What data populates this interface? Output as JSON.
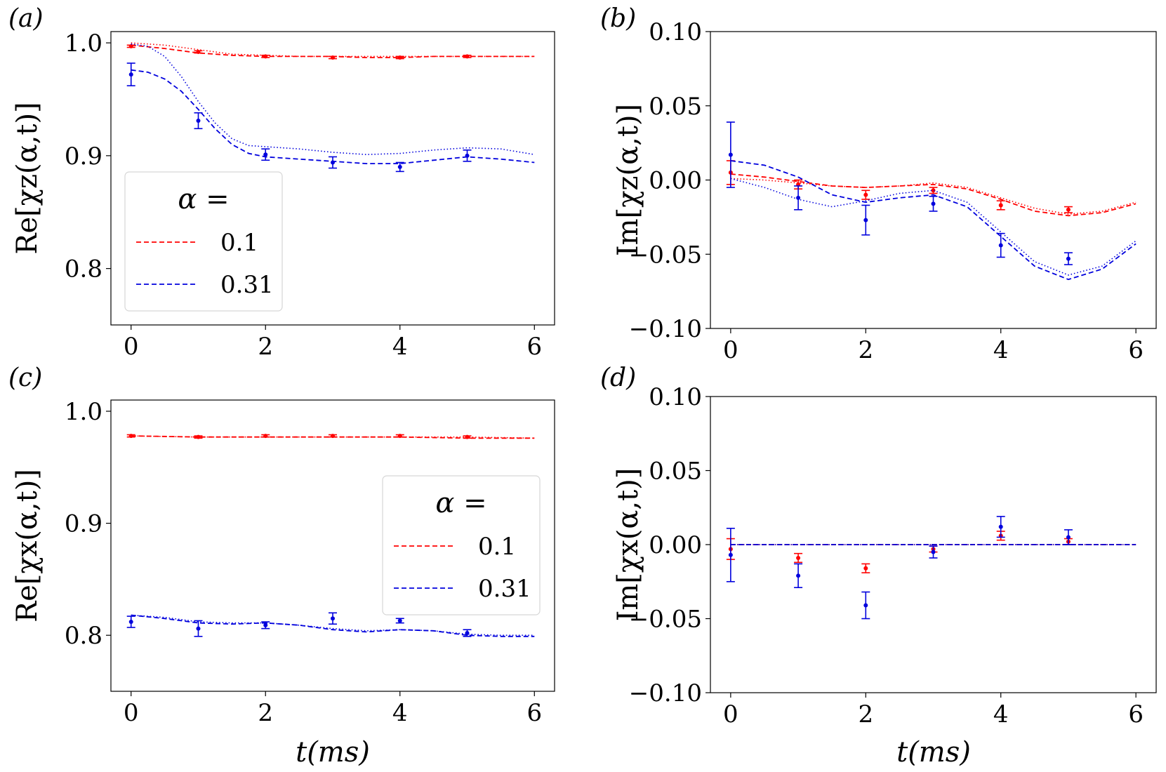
{
  "figure": {
    "xlabel": "t(ms)",
    "legend_title": "α ="
  },
  "colors": {
    "red": "#ff0000",
    "blue": "#0000dd"
  },
  "chart_data": [
    {
      "panel": "(a)",
      "type": "line",
      "ylabel": "Re[χz(α,t)]",
      "xlim": [
        -0.3,
        6.3
      ],
      "ylim": [
        0.75,
        1.01
      ],
      "xticks": [
        0,
        2,
        4,
        6
      ],
      "xtick_labels": [
        "0",
        "2",
        "4",
        "6"
      ],
      "yticks": [
        0.8,
        0.9,
        1.0
      ],
      "ytick_labels": [
        "0.8",
        "0.9",
        "1.0"
      ],
      "legend": {
        "title": "α =",
        "entries": [
          "0.1",
          "0.31"
        ],
        "position": "lower-left"
      },
      "series": [
        {
          "name": "0.1",
          "color": "red",
          "points": {
            "x": [
              0,
              1,
              2,
              3,
              4,
              5
            ],
            "y": [
              0.997,
              0.992,
              0.988,
              0.987,
              0.987,
              0.988
            ],
            "err": [
              0.001,
              0.001,
              0.001,
              0.001,
              0.001,
              0.001
            ]
          },
          "dashed": {
            "x": [
              0,
              0.5,
              1,
              1.5,
              2,
              2.5,
              3,
              3.5,
              4,
              4.5,
              5,
              5.5,
              6
            ],
            "y": [
              0.998,
              0.995,
              0.991,
              0.989,
              0.988,
              0.988,
              0.988,
              0.987,
              0.987,
              0.988,
              0.988,
              0.988,
              0.988
            ]
          },
          "dotted": {
            "x": [
              0,
              0.5,
              1,
              1.5,
              2,
              2.5,
              3,
              3.5,
              4,
              4.5,
              5,
              5.5,
              6
            ],
            "y": [
              1.0,
              0.998,
              0.994,
              0.99,
              0.989,
              0.988,
              0.988,
              0.988,
              0.988,
              0.988,
              0.988,
              0.988,
              0.988
            ]
          }
        },
        {
          "name": "0.31",
          "color": "blue",
          "points": {
            "x": [
              0,
              1,
              2,
              3,
              4,
              5
            ],
            "y": [
              0.972,
              0.931,
              0.901,
              0.894,
              0.89,
              0.9
            ],
            "err": [
              0.01,
              0.007,
              0.005,
              0.005,
              0.004,
              0.005
            ]
          },
          "dashed": {
            "x": [
              0,
              0.25,
              0.5,
              0.75,
              1,
              1.25,
              1.5,
              1.75,
              2,
              2.5,
              3,
              3.5,
              4,
              4.5,
              5,
              5.5,
              6
            ],
            "y": [
              0.976,
              0.974,
              0.968,
              0.957,
              0.941,
              0.924,
              0.91,
              0.902,
              0.899,
              0.897,
              0.895,
              0.893,
              0.893,
              0.896,
              0.899,
              0.897,
              0.894
            ]
          },
          "dotted": {
            "x": [
              0,
              0.25,
              0.5,
              0.75,
              1,
              1.25,
              1.5,
              1.75,
              2,
              2.5,
              3,
              3.5,
              4,
              4.5,
              5,
              5.5,
              6
            ],
            "y": [
              0.999,
              0.997,
              0.988,
              0.97,
              0.948,
              0.929,
              0.915,
              0.909,
              0.908,
              0.906,
              0.903,
              0.901,
              0.902,
              0.905,
              0.907,
              0.906,
              0.901
            ]
          }
        }
      ]
    },
    {
      "panel": "(b)",
      "type": "line",
      "ylabel": "Im[χz(α,t)]",
      "xlim": [
        -0.3,
        6.3
      ],
      "ylim": [
        -0.1,
        0.1
      ],
      "xticks": [
        0,
        2,
        4,
        6
      ],
      "xtick_labels": [
        "0",
        "2",
        "4",
        "6"
      ],
      "yticks": [
        -0.1,
        -0.05,
        0.0,
        0.05,
        0.1
      ],
      "ytick_labels": [
        "−0.10",
        "−0.05",
        "0.00",
        "0.05",
        "0.10"
      ],
      "series": [
        {
          "name": "0.1",
          "color": "red",
          "points": {
            "x": [
              0,
              1,
              2,
              3,
              4,
              5
            ],
            "y": [
              0.005,
              -0.003,
              -0.01,
              -0.007,
              -0.017,
              -0.02
            ],
            "err": [
              0.008,
              0.003,
              0.003,
              0.002,
              0.003,
              0.002
            ]
          },
          "dashed": {
            "x": [
              0,
              0.5,
              1,
              1.5,
              2,
              2.5,
              3,
              3.5,
              4,
              4.5,
              5,
              5.5,
              6
            ],
            "y": [
              0.004,
              0.002,
              -0.001,
              -0.004,
              -0.005,
              -0.004,
              -0.003,
              -0.006,
              -0.013,
              -0.021,
              -0.024,
              -0.022,
              -0.016
            ]
          },
          "dotted": {
            "x": [
              0,
              0.5,
              1,
              1.5,
              2,
              2.5,
              3,
              3.5,
              4,
              4.5,
              5,
              5.5,
              6
            ],
            "y": [
              0.001,
              0.0,
              -0.002,
              -0.004,
              -0.005,
              -0.004,
              -0.002,
              -0.005,
              -0.012,
              -0.019,
              -0.023,
              -0.021,
              -0.015
            ]
          }
        },
        {
          "name": "0.31",
          "color": "blue",
          "points": {
            "x": [
              0,
              1,
              2,
              3,
              4,
              5
            ],
            "y": [
              0.017,
              -0.012,
              -0.027,
              -0.016,
              -0.044,
              -0.053
            ],
            "err": [
              0.022,
              0.008,
              0.01,
              0.005,
              0.008,
              0.004
            ]
          },
          "dashed": {
            "x": [
              0,
              0.5,
              1,
              1.5,
              2,
              2.5,
              3,
              3.5,
              4,
              4.5,
              5,
              5.5,
              6
            ],
            "y": [
              0.013,
              0.01,
              0.002,
              -0.01,
              -0.015,
              -0.012,
              -0.01,
              -0.018,
              -0.038,
              -0.058,
              -0.067,
              -0.06,
              -0.043
            ]
          },
          "dotted": {
            "x": [
              0,
              0.5,
              1,
              1.5,
              2,
              2.5,
              3,
              3.5,
              4,
              4.5,
              5,
              5.5,
              6
            ],
            "y": [
              0.001,
              -0.005,
              -0.013,
              -0.018,
              -0.014,
              -0.009,
              -0.007,
              -0.015,
              -0.035,
              -0.055,
              -0.064,
              -0.058,
              -0.041
            ]
          }
        }
      ]
    },
    {
      "panel": "(c)",
      "type": "line",
      "ylabel": "Re[χx(α,t)]",
      "xlim": [
        -0.3,
        6.3
      ],
      "ylim": [
        0.75,
        1.01
      ],
      "xticks": [
        0,
        2,
        4,
        6
      ],
      "xtick_labels": [
        "0",
        "2",
        "4",
        "6"
      ],
      "yticks": [
        0.8,
        0.9,
        1.0
      ],
      "ytick_labels": [
        "0.8",
        "0.9",
        "1.0"
      ],
      "legend": {
        "title": "α =",
        "entries": [
          "0.1",
          "0.31"
        ],
        "position": "center-right"
      },
      "series": [
        {
          "name": "0.1",
          "color": "red",
          "points": {
            "x": [
              0,
              1,
              2,
              3,
              4,
              5
            ],
            "y": [
              0.978,
              0.977,
              0.978,
              0.978,
              0.978,
              0.977
            ],
            "err": [
              0.001,
              0.001,
              0.001,
              0.001,
              0.001,
              0.001
            ]
          },
          "dashed": {
            "x": [
              0,
              1,
              2,
              3,
              4,
              5,
              6
            ],
            "y": [
              0.978,
              0.977,
              0.977,
              0.977,
              0.977,
              0.976,
              0.976
            ]
          },
          "dotted": {
            "x": [
              0,
              1,
              2,
              3,
              4,
              5,
              6
            ],
            "y": [
              0.978,
              0.977,
              0.977,
              0.977,
              0.977,
              0.977,
              0.976
            ]
          }
        },
        {
          "name": "0.31",
          "color": "blue",
          "points": {
            "x": [
              0,
              1,
              2,
              3,
              4,
              5
            ],
            "y": [
              0.812,
              0.806,
              0.809,
              0.815,
              0.813,
              0.802
            ],
            "err": [
              0.005,
              0.007,
              0.003,
              0.005,
              0.002,
              0.003
            ]
          },
          "dashed": {
            "x": [
              0,
              0.5,
              1,
              1.5,
              2,
              2.5,
              3,
              3.5,
              4,
              4.5,
              5,
              5.5,
              6
            ],
            "y": [
              0.818,
              0.815,
              0.811,
              0.81,
              0.811,
              0.809,
              0.805,
              0.803,
              0.805,
              0.804,
              0.8,
              0.799,
              0.799
            ]
          },
          "dotted": {
            "x": [
              0,
              0.5,
              1,
              1.5,
              2,
              2.5,
              3,
              3.5,
              4,
              4.5,
              5,
              5.5,
              6
            ],
            "y": [
              0.818,
              0.816,
              0.812,
              0.811,
              0.811,
              0.809,
              0.806,
              0.804,
              0.805,
              0.804,
              0.801,
              0.8,
              0.8
            ]
          }
        }
      ]
    },
    {
      "panel": "(d)",
      "type": "line",
      "ylabel": "Im[χx(α,t)]",
      "xlim": [
        -0.3,
        6.3
      ],
      "ylim": [
        -0.1,
        0.1
      ],
      "xticks": [
        0,
        2,
        4,
        6
      ],
      "xtick_labels": [
        "0",
        "2",
        "4",
        "6"
      ],
      "yticks": [
        -0.1,
        -0.05,
        0.0,
        0.05,
        0.1
      ],
      "ytick_labels": [
        "−0.10",
        "−0.05",
        "0.00",
        "0.05",
        "0.10"
      ],
      "series": [
        {
          "name": "0.1",
          "color": "red",
          "points": {
            "x": [
              0,
              1,
              2,
              3,
              4,
              5
            ],
            "y": [
              -0.003,
              -0.009,
              -0.016,
              -0.003,
              0.006,
              0.002
            ],
            "err": [
              0.007,
              0.003,
              0.003,
              0.002,
              0.003,
              0.002
            ]
          },
          "dashed": {
            "x": [
              0,
              6
            ],
            "y": [
              0.0,
              0.0
            ]
          },
          "dotted": {
            "x": [
              0,
              6
            ],
            "y": [
              0.0,
              0.0
            ]
          }
        },
        {
          "name": "0.31",
          "color": "blue",
          "points": {
            "x": [
              0,
              1,
              2,
              3,
              4,
              5
            ],
            "y": [
              -0.007,
              -0.021,
              -0.041,
              -0.005,
              0.012,
              0.005
            ],
            "err": [
              0.018,
              0.008,
              0.009,
              0.004,
              0.007,
              0.005
            ]
          },
          "dashed": {
            "x": [
              0,
              6
            ],
            "y": [
              0.0,
              0.0
            ]
          },
          "dotted": {
            "x": [
              0,
              6
            ],
            "y": [
              0.0,
              0.0
            ]
          }
        }
      ]
    }
  ]
}
